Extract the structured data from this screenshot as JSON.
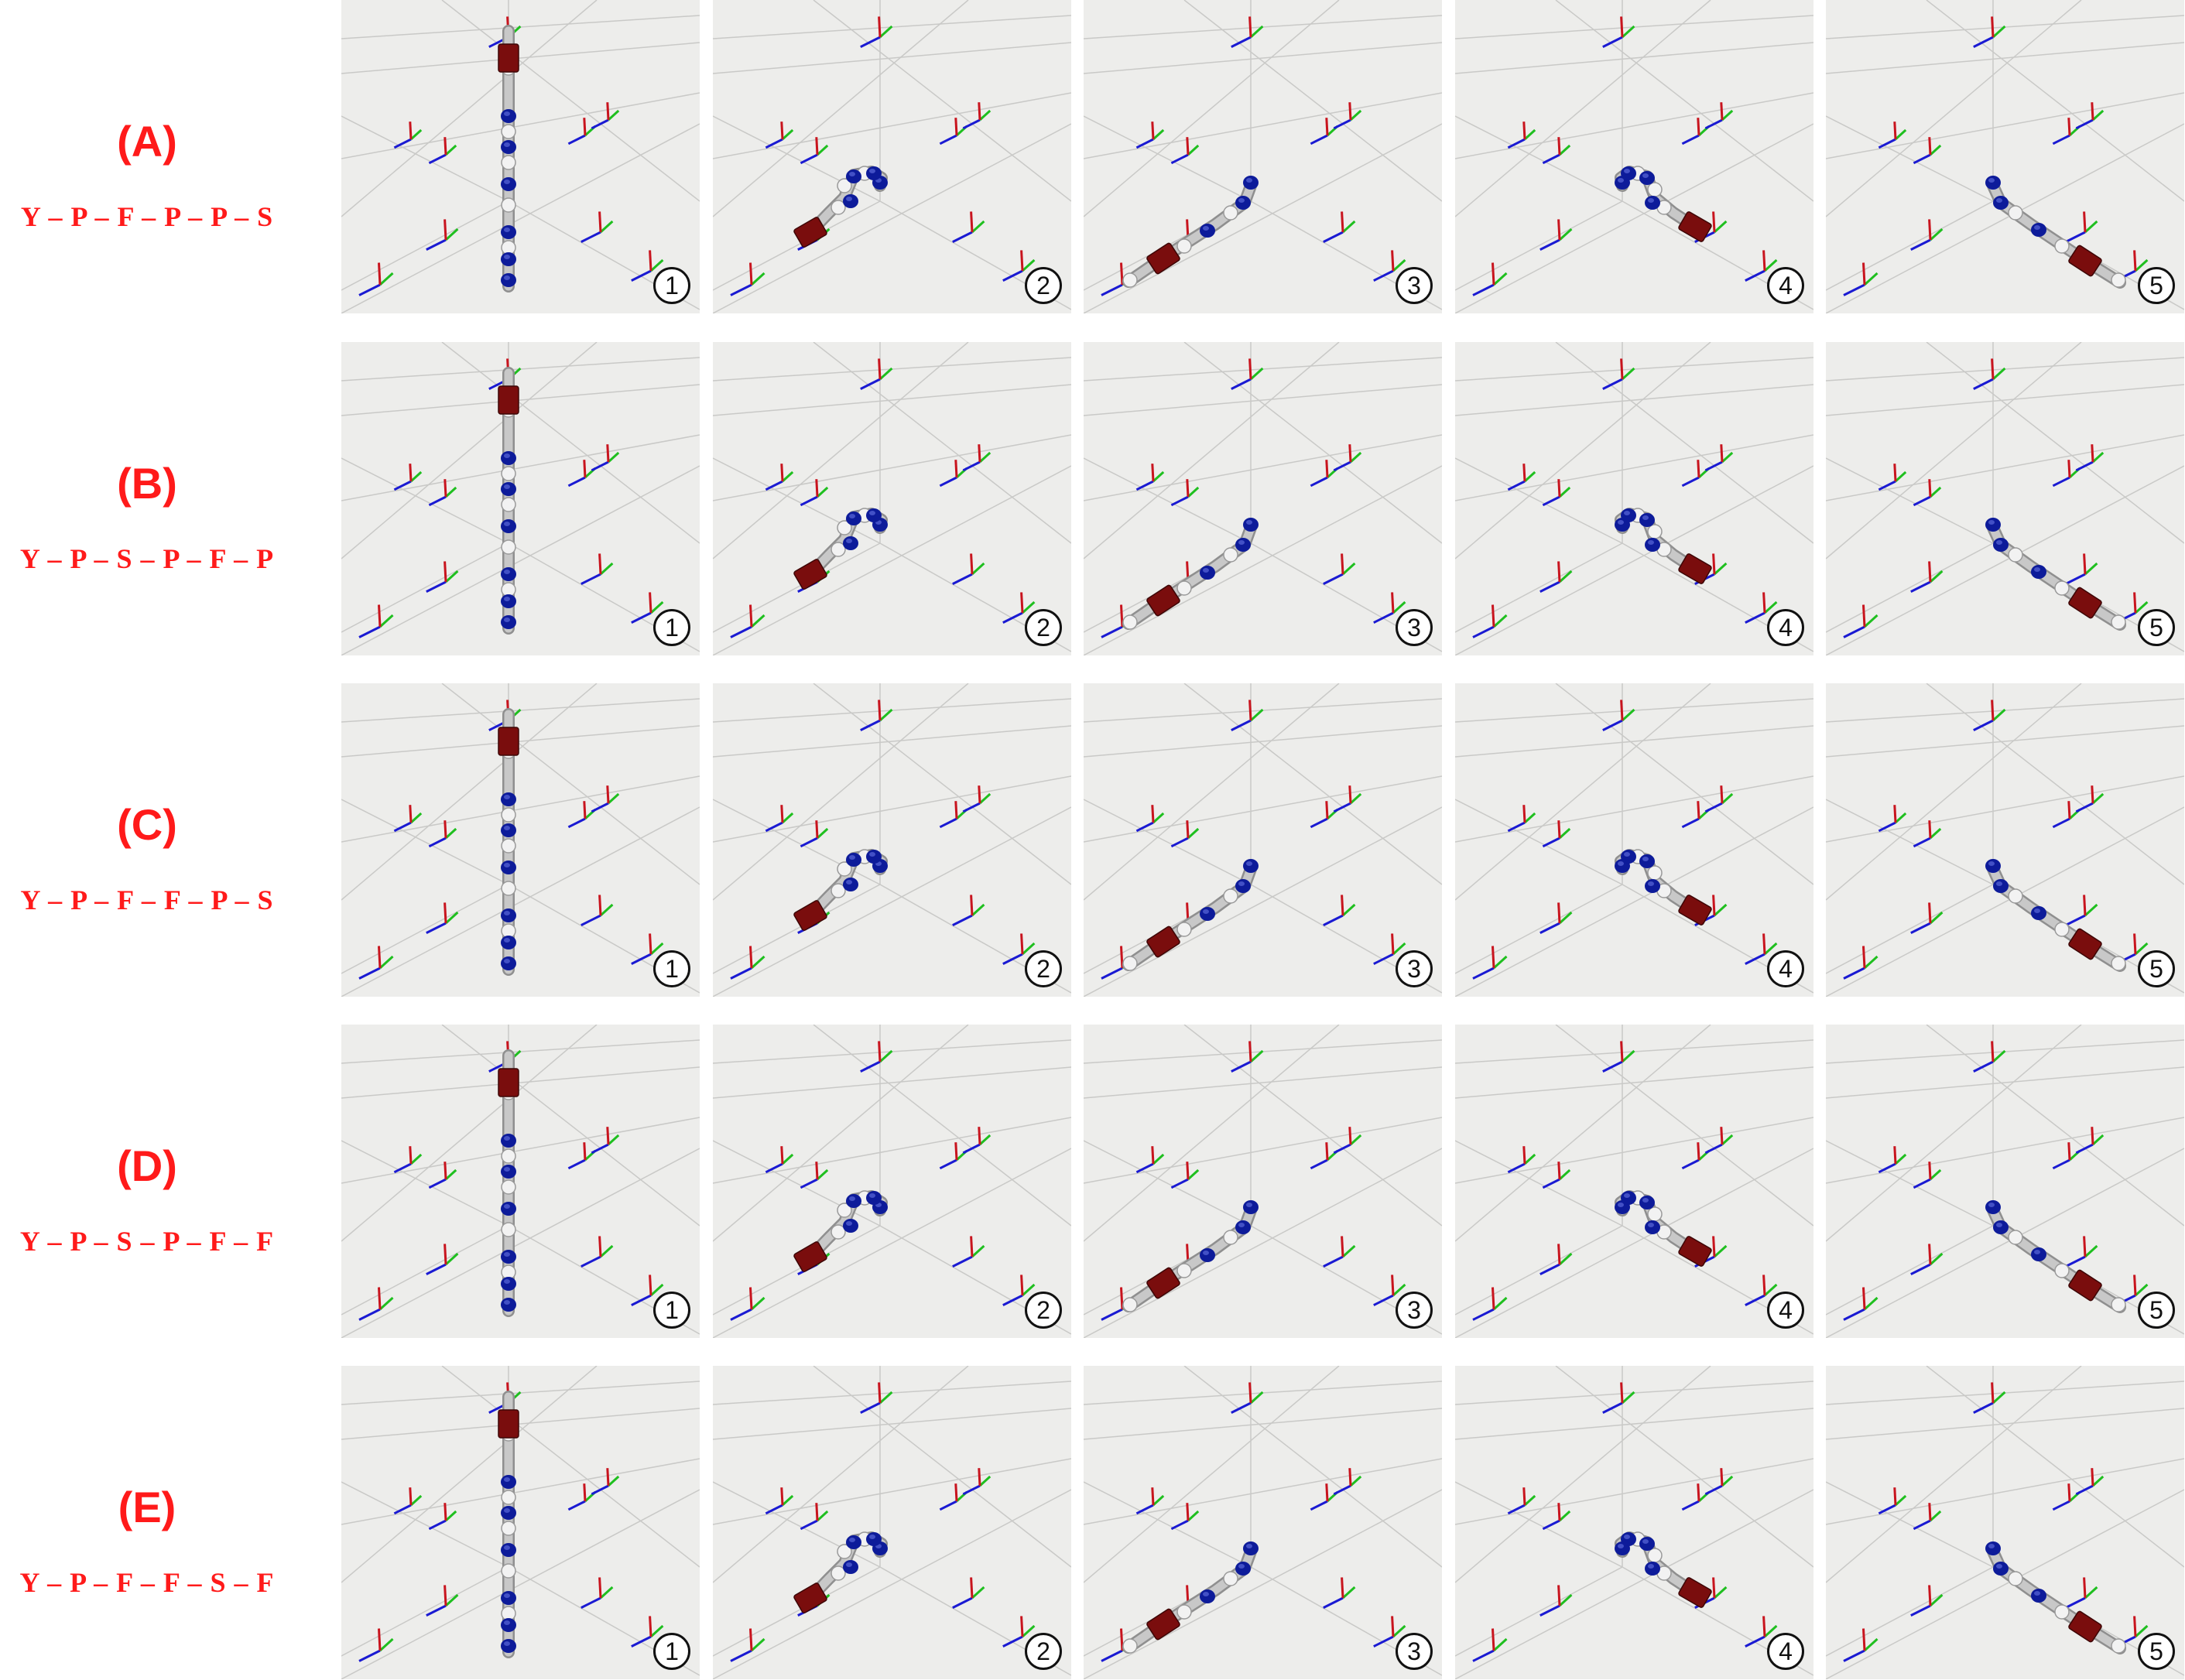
{
  "colors": {
    "label": "#ff1a1a",
    "panel_bg": "#ededeb",
    "grid": "#c9c9c7",
    "axis_x": "#c8141e",
    "axis_y": "#1fbf1f",
    "axis_z": "#1a1ad2",
    "link": "#c8c8c8",
    "joint": "#0d1b9a",
    "fixed_block": "#7a0d0d"
  },
  "rows": [
    {
      "letter": "(A)",
      "sequence": "Y – P – F – P – P – S",
      "frames": [
        {
          "badge": "1",
          "pose": "upright"
        },
        {
          "badge": "2",
          "pose": "reach-front-left"
        },
        {
          "badge": "3",
          "pose": "extend-front-left"
        },
        {
          "badge": "4",
          "pose": "reach-front-right"
        },
        {
          "badge": "5",
          "pose": "extend-front-right"
        }
      ]
    },
    {
      "letter": "(B)",
      "sequence": "Y – P – S – P – F – P",
      "frames": [
        {
          "badge": "1",
          "pose": "upright"
        },
        {
          "badge": "2",
          "pose": "reach-front-left"
        },
        {
          "badge": "3",
          "pose": "extend-front-left"
        },
        {
          "badge": "4",
          "pose": "reach-front-right"
        },
        {
          "badge": "5",
          "pose": "extend-front-right"
        }
      ]
    },
    {
      "letter": "(C)",
      "sequence": "Y – P – F – F – P – S",
      "frames": [
        {
          "badge": "1",
          "pose": "upright"
        },
        {
          "badge": "2",
          "pose": "reach-front-left"
        },
        {
          "badge": "3",
          "pose": "extend-front-left"
        },
        {
          "badge": "4",
          "pose": "reach-front-right"
        },
        {
          "badge": "5",
          "pose": "extend-front-right"
        }
      ]
    },
    {
      "letter": "(D)",
      "sequence": "Y – P – S – P – F – F",
      "frames": [
        {
          "badge": "1",
          "pose": "upright"
        },
        {
          "badge": "2",
          "pose": "reach-front-left"
        },
        {
          "badge": "3",
          "pose": "extend-front-left"
        },
        {
          "badge": "4",
          "pose": "reach-front-right"
        },
        {
          "badge": "5",
          "pose": "extend-front-right"
        }
      ]
    },
    {
      "letter": "(E)",
      "sequence": "Y – P – F – F – S – F",
      "frames": [
        {
          "badge": "1",
          "pose": "upright"
        },
        {
          "badge": "2",
          "pose": "reach-front-left"
        },
        {
          "badge": "3",
          "pose": "extend-front-left"
        },
        {
          "badge": "4",
          "pose": "reach-front-right"
        },
        {
          "badge": "5",
          "pose": "extend-front-right"
        }
      ]
    }
  ]
}
